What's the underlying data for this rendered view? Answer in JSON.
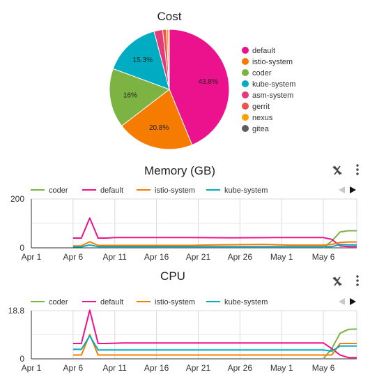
{
  "chart_data": [
    {
      "type": "pie",
      "title": "Cost",
      "legend_position": "right",
      "slices": [
        {
          "name": "default",
          "value": 43.8,
          "label": "43.8%",
          "color": "#ec118c"
        },
        {
          "name": "istio-system",
          "value": 20.8,
          "label": "20.8%",
          "color": "#f57c00"
        },
        {
          "name": "coder",
          "value": 16.0,
          "label": "16%",
          "color": "#7cb342"
        },
        {
          "name": "kube-system",
          "value": 15.3,
          "label": "15.3%",
          "color": "#00acc1"
        },
        {
          "name": "asm-system",
          "value": 2.3,
          "label": "",
          "color": "#e53979"
        },
        {
          "name": "gerrit",
          "value": 1.0,
          "label": "",
          "color": "#ef5350"
        },
        {
          "name": "nexus",
          "value": 0.6,
          "label": "",
          "color": "#ffa000"
        },
        {
          "name": "gitea",
          "value": 0.2,
          "label": "",
          "color": "#5f5f5f"
        }
      ]
    },
    {
      "type": "line",
      "title": "Memory (GB)",
      "legend_position": "top",
      "x_ticks": [
        "Apr 1",
        "Apr 6",
        "Apr 11",
        "Apr 16",
        "Apr 21",
        "Apr 26",
        "May 1",
        "May 6"
      ],
      "y_ticks": [
        "200",
        "0"
      ],
      "ylim": [
        0,
        200
      ],
      "x_start": "Apr 1",
      "x_end": "May 10",
      "series": [
        {
          "name": "coder",
          "color": "#7cb342",
          "points": [
            [
              "2024-05-06",
              0
            ],
            [
              "2024-05-07",
              28
            ],
            [
              "2024-05-08",
              65
            ],
            [
              "2024-05-09",
              70
            ],
            [
              "2024-05-10",
              70
            ]
          ]
        },
        {
          "name": "default",
          "color": "#ec118c",
          "points": [
            [
              "2024-04-06",
              40
            ],
            [
              "2024-04-07",
              40
            ],
            [
              "2024-04-08",
              122
            ],
            [
              "2024-04-09",
              40
            ],
            [
              "2024-04-10",
              40
            ],
            [
              "2024-04-11",
              42
            ],
            [
              "2024-04-15",
              42
            ],
            [
              "2024-04-20",
              42
            ],
            [
              "2024-04-25",
              41
            ],
            [
              "2024-04-30",
              42
            ],
            [
              "2024-05-03",
              42
            ],
            [
              "2024-05-06",
              42
            ],
            [
              "2024-05-07",
              35
            ],
            [
              "2024-05-08",
              8
            ],
            [
              "2024-05-09",
              5
            ],
            [
              "2024-05-10",
              5
            ]
          ]
        },
        {
          "name": "istio-system",
          "color": "#f57c00",
          "points": [
            [
              "2024-04-06",
              8
            ],
            [
              "2024-04-07",
              8
            ],
            [
              "2024-04-08",
              25
            ],
            [
              "2024-04-09",
              10
            ],
            [
              "2024-04-15",
              10
            ],
            [
              "2024-04-20",
              10
            ],
            [
              "2024-04-23",
              12
            ],
            [
              "2024-04-26",
              13
            ],
            [
              "2024-04-29",
              14
            ],
            [
              "2024-05-02",
              11
            ],
            [
              "2024-05-06",
              11
            ],
            [
              "2024-05-07",
              14
            ],
            [
              "2024-05-08",
              22
            ],
            [
              "2024-05-09",
              24
            ],
            [
              "2024-05-10",
              24
            ]
          ]
        },
        {
          "name": "kube-system",
          "color": "#00acc1",
          "points": [
            [
              "2024-04-06",
              4
            ],
            [
              "2024-04-07",
              4
            ],
            [
              "2024-04-08",
              12
            ],
            [
              "2024-04-09",
              5
            ],
            [
              "2024-04-15",
              5
            ],
            [
              "2024-04-20",
              5
            ],
            [
              "2024-04-25",
              5
            ],
            [
              "2024-04-30",
              5
            ],
            [
              "2024-05-06",
              5
            ],
            [
              "2024-05-07",
              5
            ],
            [
              "2024-05-08",
              14
            ],
            [
              "2024-05-09",
              12
            ],
            [
              "2024-05-10",
              12
            ]
          ]
        }
      ]
    },
    {
      "type": "line",
      "title": "CPU",
      "legend_position": "top",
      "x_ticks": [
        "Apr 1",
        "Apr 6",
        "Apr 11",
        "Apr 16",
        "Apr 21",
        "Apr 26",
        "May 1",
        "May 6"
      ],
      "y_ticks": [
        "18.8",
        "0"
      ],
      "ylim": [
        0,
        18.8
      ],
      "x_start": "Apr 1",
      "x_end": "May 10",
      "series": [
        {
          "name": "coder",
          "color": "#7cb342",
          "points": [
            [
              "2024-05-06",
              0
            ],
            [
              "2024-05-07",
              4
            ],
            [
              "2024-05-08",
              10
            ],
            [
              "2024-05-09",
              11.5
            ],
            [
              "2024-05-10",
              11.6
            ]
          ]
        },
        {
          "name": "default",
          "color": "#ec118c",
          "points": [
            [
              "2024-04-06",
              6
            ],
            [
              "2024-04-07",
              6
            ],
            [
              "2024-04-08",
              19
            ],
            [
              "2024-04-09",
              6
            ],
            [
              "2024-04-10",
              6
            ],
            [
              "2024-04-12",
              6.2
            ],
            [
              "2024-04-16",
              6.2
            ],
            [
              "2024-04-21",
              6.2
            ],
            [
              "2024-04-26",
              6.2
            ],
            [
              "2024-05-01",
              6.2
            ],
            [
              "2024-05-06",
              6.2
            ],
            [
              "2024-05-07",
              4
            ],
            [
              "2024-05-08",
              1.5
            ],
            [
              "2024-05-09",
              0.5
            ],
            [
              "2024-05-10",
              0.5
            ]
          ]
        },
        {
          "name": "istio-system",
          "color": "#f57c00",
          "points": [
            [
              "2024-04-06",
              1.5
            ],
            [
              "2024-04-07",
              1.5
            ],
            [
              "2024-04-08",
              9.5
            ],
            [
              "2024-04-09",
              1.5
            ],
            [
              "2024-04-16",
              1.5
            ],
            [
              "2024-04-21",
              1.5
            ],
            [
              "2024-04-26",
              1.5
            ],
            [
              "2024-05-01",
              1.5
            ],
            [
              "2024-05-06",
              1.5
            ],
            [
              "2024-05-07",
              1.5
            ],
            [
              "2024-05-08",
              6
            ],
            [
              "2024-05-09",
              6
            ],
            [
              "2024-05-10",
              6
            ]
          ]
        },
        {
          "name": "kube-system",
          "color": "#00acc1",
          "points": [
            [
              "2024-04-06",
              3.7
            ],
            [
              "2024-04-07",
              3.7
            ],
            [
              "2024-04-08",
              9
            ],
            [
              "2024-04-09",
              3.5
            ],
            [
              "2024-04-16",
              3.5
            ],
            [
              "2024-04-21",
              3.5
            ],
            [
              "2024-04-26",
              3.5
            ],
            [
              "2024-05-01",
              3.5
            ],
            [
              "2024-05-06",
              3.5
            ],
            [
              "2024-05-07",
              3
            ],
            [
              "2024-05-08",
              5
            ],
            [
              "2024-05-09",
              5
            ],
            [
              "2024-05-10",
              5
            ]
          ]
        }
      ]
    }
  ],
  "icons": {
    "reset_zoom": "no-zoom-icon",
    "menu": "vertical-dots-icon",
    "legend_prev": "triangle-left-icon",
    "legend_next": "triangle-right-icon"
  },
  "colors": {
    "grid": "#d9d9d9",
    "axis": "#333333",
    "legend_prev_disabled": "#c8c8c8"
  }
}
